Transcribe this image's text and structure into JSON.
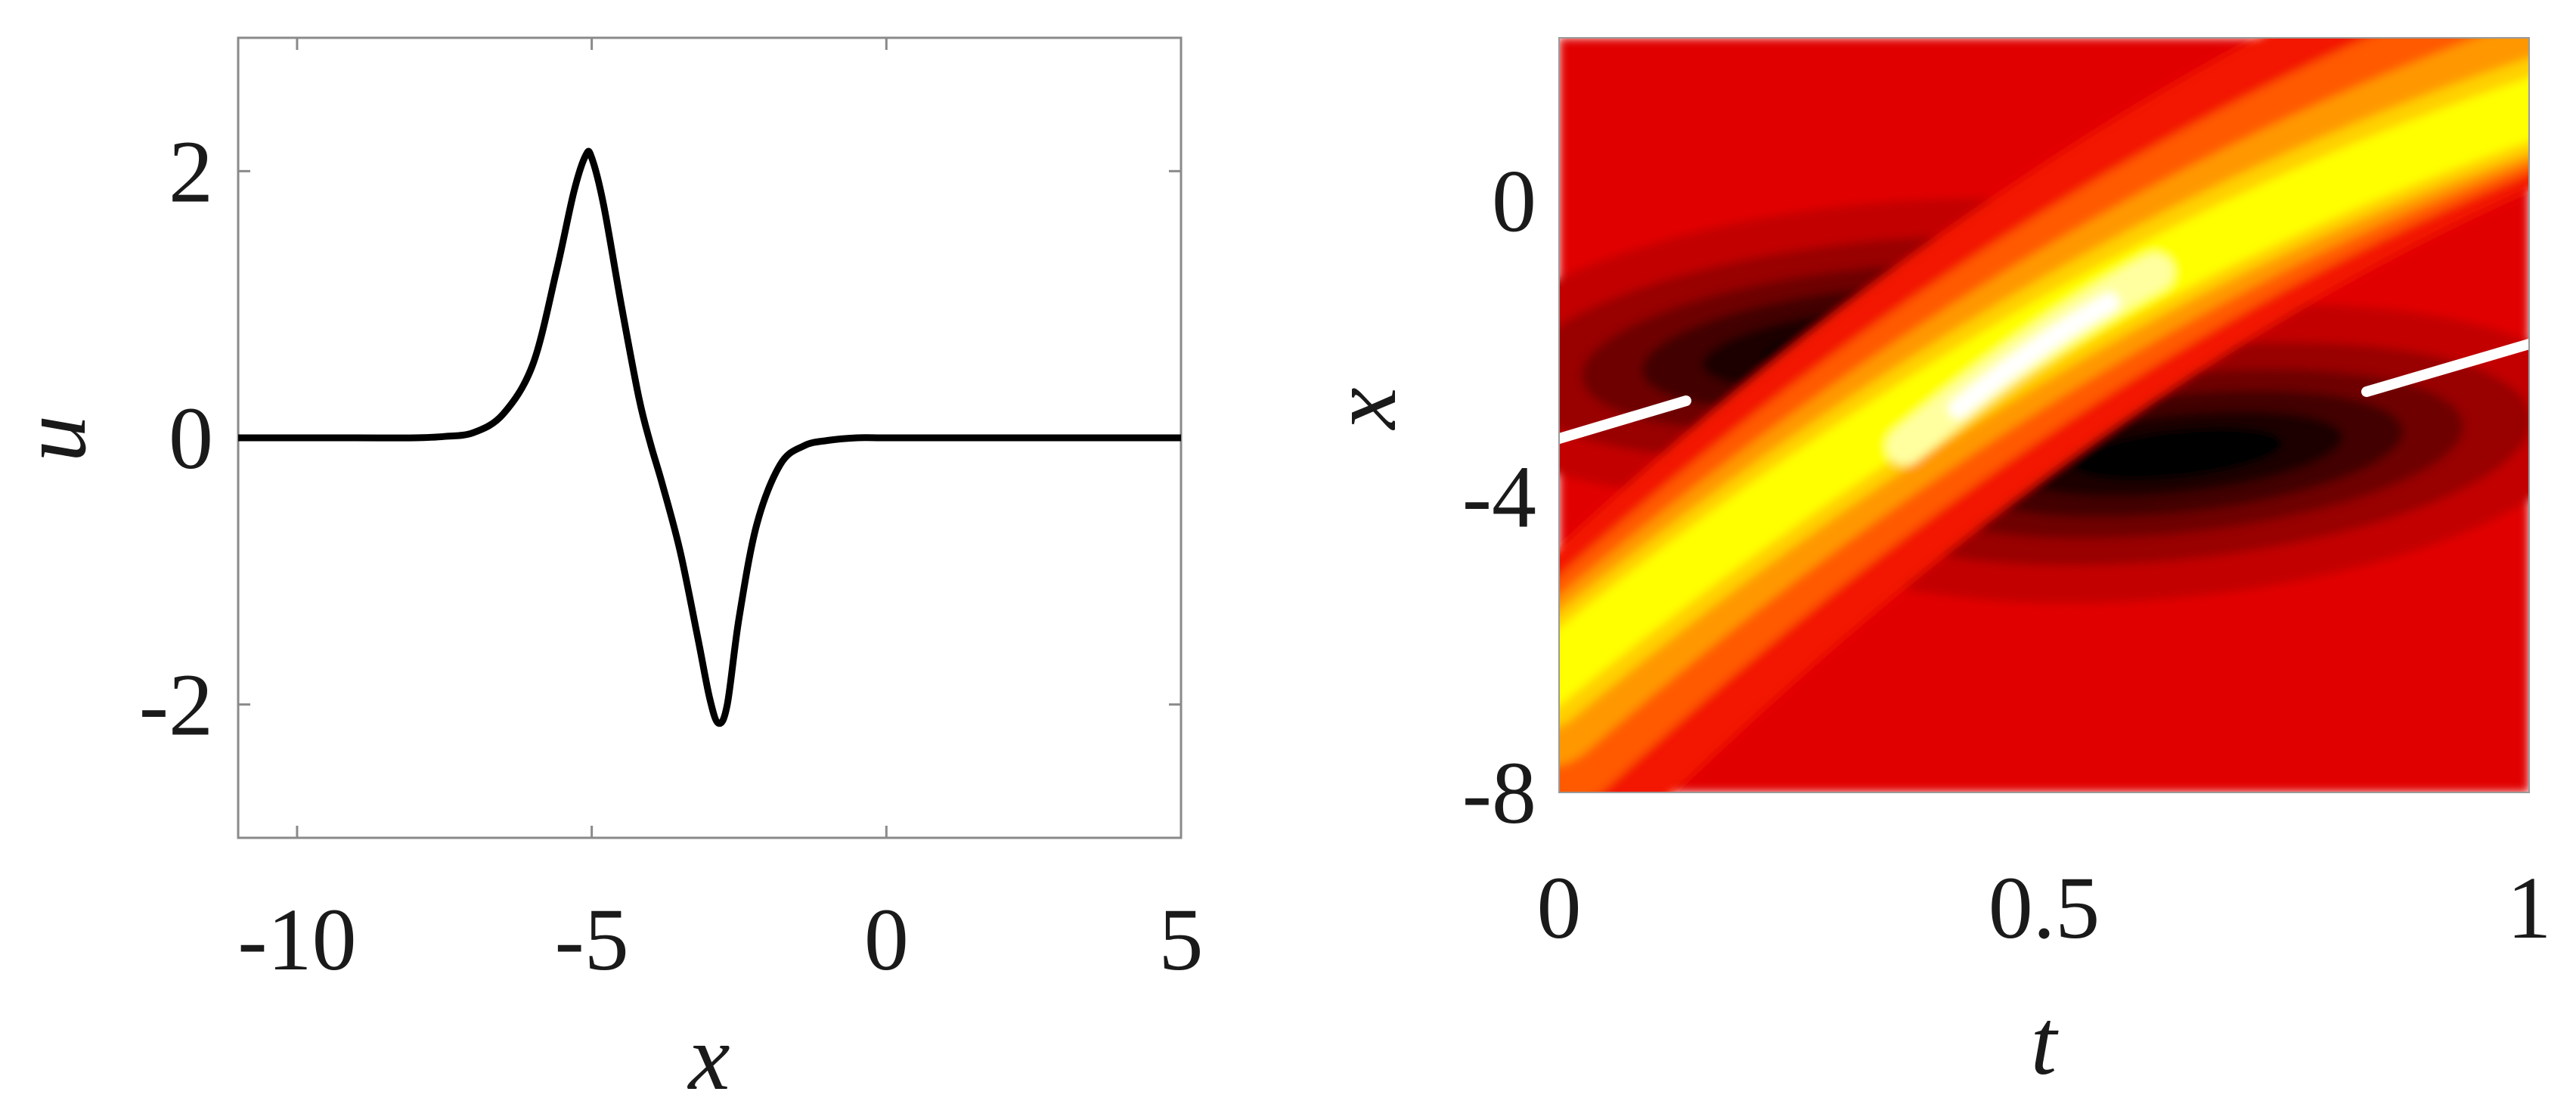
{
  "chart_data": [
    {
      "type": "line",
      "title": "",
      "xlabel": "x",
      "ylabel": "u",
      "xlim": [
        -11,
        5
      ],
      "ylim": [
        -3,
        3
      ],
      "xticks": [
        -10,
        -5,
        0,
        5
      ],
      "yticks": [
        -2,
        0,
        2
      ],
      "xtick_labels": [
        "-10",
        "-5",
        "0",
        "5"
      ],
      "ytick_labels": [
        "-2",
        "0",
        "2"
      ],
      "grid": false,
      "line_color": "#000000",
      "series": [
        {
          "x": [
            -11,
            -10,
            -9,
            -8,
            -7.5,
            -7,
            -6.5,
            -6,
            -5.6,
            -5.3,
            -5.1,
            -5.0,
            -4.8,
            -4.5,
            -4.2,
            -4.0,
            -3.8,
            -3.5,
            -3.2,
            -3.0,
            -2.85,
            -2.7,
            -2.5,
            -2.2,
            -1.8,
            -1.4,
            -1.0,
            -0.5,
            0,
            1,
            2,
            3,
            4,
            5
          ],
          "y": [
            0,
            0,
            0,
            0,
            0.01,
            0.04,
            0.18,
            0.55,
            1.25,
            1.85,
            2.12,
            2.1,
            1.75,
            1.0,
            0.3,
            -0.05,
            -0.35,
            -0.85,
            -1.5,
            -1.95,
            -2.14,
            -2.0,
            -1.35,
            -0.65,
            -0.2,
            -0.06,
            -0.02,
            0,
            0,
            0,
            0,
            0,
            0,
            0
          ]
        }
      ]
    },
    {
      "type": "heatmap",
      "title": "",
      "xlabel": "t",
      "ylabel": "x",
      "xlim": [
        0,
        1
      ],
      "ylim": [
        -8,
        2.2
      ],
      "xticks": [
        0,
        0.5,
        1
      ],
      "yticks": [
        -8,
        -4,
        0
      ],
      "xtick_labels": [
        "0",
        "0.5",
        "1"
      ],
      "ytick_labels": [
        "-8",
        "-4",
        "0"
      ],
      "colormap": "hot",
      "colors": {
        "low": "#000000",
        "dark_red": "#8a0000",
        "background": "#e10000",
        "orange": "#ff5a00",
        "yellow": "#ffff00",
        "high": "#ffffff"
      }
    }
  ]
}
